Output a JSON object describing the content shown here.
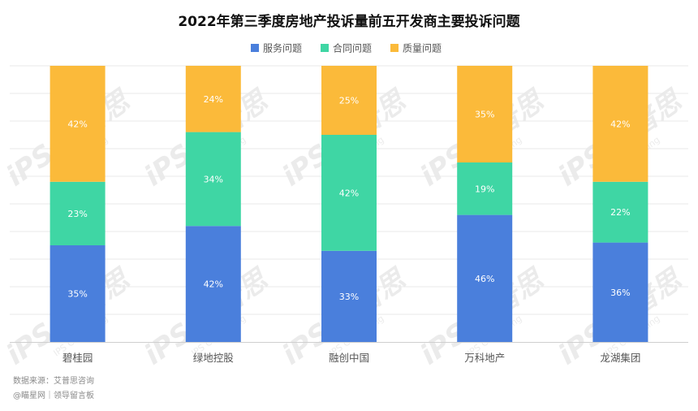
{
  "chart_data": {
    "type": "bar",
    "stacked": true,
    "percent": true,
    "title": "2022年第三季度房地产投诉量前五开发商主要投诉问题",
    "categories": [
      "碧桂园",
      "绿地控股",
      "融创中国",
      "万科地产",
      "龙湖集团"
    ],
    "series": [
      {
        "name": "服务问题",
        "values": [
          35,
          42,
          33,
          46,
          36
        ]
      },
      {
        "name": "合同问题",
        "values": [
          23,
          34,
          42,
          19,
          22
        ]
      },
      {
        "name": "质量问题",
        "values": [
          42,
          24,
          25,
          35,
          42
        ]
      }
    ],
    "ylim": [
      0,
      100
    ],
    "grid": true,
    "legend_position": "top-center",
    "value_suffix": "%"
  },
  "colors": {
    "series": [
      "#4a7fdc",
      "#3fd6a4",
      "#fbba3a"
    ],
    "grid": "#e9e9e9",
    "axis": "#cfcfcf",
    "label_text": "#ffffff",
    "title": "#111111",
    "legend_text": "#555555",
    "axis_text": "#555555",
    "footer_text": "#8a8a8a",
    "watermark": "#dcdcdc"
  },
  "watermark": {
    "logo": "iPS 艾普思",
    "sub": "IPS Consulting"
  },
  "footer": {
    "source": "数据来源：艾普思咨询",
    "credit": "@瞄星网｜领导留言板"
  }
}
